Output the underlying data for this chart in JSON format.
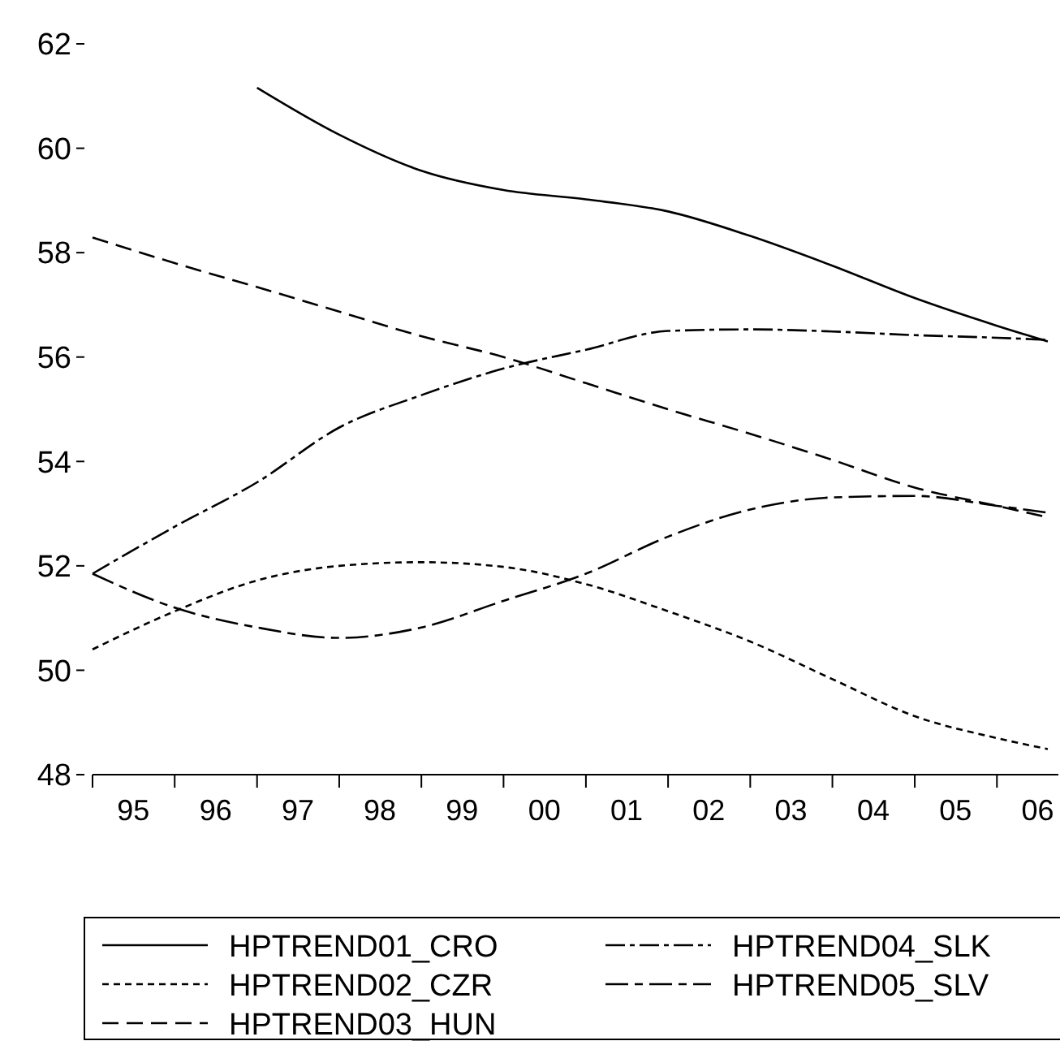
{
  "chart_data": {
    "type": "line",
    "x": [
      "1995-01-01",
      "1996-01-01",
      "1997-01-01",
      "1998-01-01",
      "1999-01-01",
      "2000-01-01",
      "2001-01-01",
      "2002-01-01",
      "2003-01-01",
      "2004-01-01",
      "2005-01-01",
      "2006-01-01",
      "2006-08-15"
    ],
    "xlim": [
      "1995-01-01",
      "2006-10-01"
    ],
    "xticks": [
      {
        "value": "1995-01-01",
        "label": null
      },
      {
        "value": "1995-07-01",
        "label": "95"
      },
      {
        "value": "1996-01-01",
        "label": null
      },
      {
        "value": "1996-07-01",
        "label": "96"
      },
      {
        "value": "1997-01-01",
        "label": null
      },
      {
        "value": "1997-07-01",
        "label": "97"
      },
      {
        "value": "1998-01-01",
        "label": null
      },
      {
        "value": "1998-07-01",
        "label": "98"
      },
      {
        "value": "1999-01-01",
        "label": null
      },
      {
        "value": "1999-07-01",
        "label": "99"
      },
      {
        "value": "2000-01-01",
        "label": null
      },
      {
        "value": "2000-07-01",
        "label": "00"
      },
      {
        "value": "2001-01-01",
        "label": null
      },
      {
        "value": "2001-07-01",
        "label": "01"
      },
      {
        "value": "2002-01-01",
        "label": null
      },
      {
        "value": "2002-07-01",
        "label": "02"
      },
      {
        "value": "2003-01-01",
        "label": null
      },
      {
        "value": "2003-07-01",
        "label": "03"
      },
      {
        "value": "2004-01-01",
        "label": null
      },
      {
        "value": "2004-07-01",
        "label": "04"
      },
      {
        "value": "2005-01-01",
        "label": null
      },
      {
        "value": "2005-07-01",
        "label": "05"
      },
      {
        "value": "2006-01-01",
        "label": null
      },
      {
        "value": "2006-07-01",
        "label": "06"
      }
    ],
    "ylim": [
      48,
      62
    ],
    "yticks": [
      48,
      50,
      52,
      54,
      56,
      58,
      60,
      62
    ],
    "grid": false,
    "legend": "bottom",
    "series": [
      {
        "name": "HPTREND01_CRO",
        "color": "#000000",
        "line_style": "solid",
        "values": [
          null,
          null,
          61.16,
          60.26,
          59.57,
          59.2,
          59.02,
          58.79,
          58.32,
          57.75,
          57.13,
          56.6,
          56.3
        ]
      },
      {
        "name": "HPTREND02_CZR",
        "color": "#000000",
        "line_style": "dashed",
        "values": [
          50.4,
          51.13,
          51.72,
          52.0,
          52.07,
          51.98,
          51.65,
          51.13,
          50.55,
          49.83,
          49.12,
          48.7,
          48.49
        ]
      },
      {
        "name": "HPTREND03_HUN",
        "color": "#000000",
        "line_style": "dashed",
        "values": [
          58.29,
          57.8,
          57.34,
          56.87,
          56.4,
          56.0,
          55.5,
          55.0,
          54.53,
          54.03,
          53.5,
          53.15,
          52.93
        ]
      },
      {
        "name": "HPTREND04_SLK",
        "color": "#000000",
        "line_style": "dashed",
        "values": [
          51.85,
          52.75,
          53.6,
          54.65,
          55.27,
          55.78,
          56.14,
          56.5,
          56.53,
          56.49,
          56.42,
          56.37,
          56.33
        ]
      },
      {
        "name": "HPTREND05_SLV",
        "color": "#000000",
        "line_style": "dashed",
        "values": [
          51.85,
          51.2,
          50.82,
          50.62,
          50.82,
          51.33,
          51.85,
          52.56,
          53.08,
          53.31,
          53.34,
          53.15,
          53.02
        ]
      }
    ]
  }
}
